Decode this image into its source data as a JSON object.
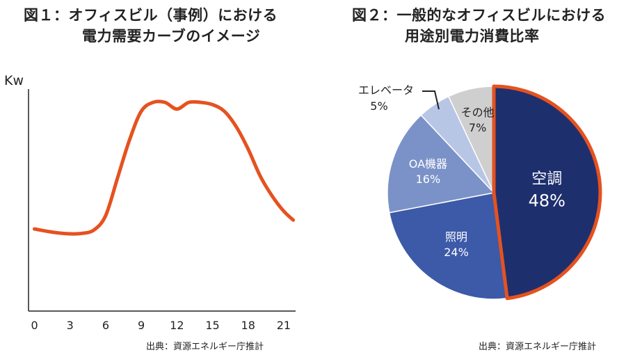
{
  "chart_data": [
    {
      "type": "line",
      "title": "図１：オフィスビル（事例）における",
      "subtitle": "電力需要カーブのイメージ",
      "xlabel": "",
      "ylabel": "Kw",
      "x_ticks": [
        "0",
        "3",
        "6",
        "9",
        "12",
        "15",
        "18",
        "21"
      ],
      "xlim": [
        -0.5,
        22
      ],
      "ylim": [
        0,
        100
      ],
      "grid": false,
      "color": "#e5521f",
      "series": [
        {
          "name": "電力需要",
          "x": [
            0,
            1,
            2,
            3,
            4,
            5,
            6,
            7,
            8,
            9,
            10,
            11,
            12,
            13,
            14,
            15,
            16,
            17,
            18,
            19,
            20,
            21,
            21.8
          ],
          "y": [
            37,
            36,
            35.2,
            34.8,
            35,
            36.5,
            43,
            60,
            77,
            90,
            94,
            94,
            91,
            94,
            94,
            93,
            90,
            83,
            73,
            61,
            52,
            45,
            41
          ]
        }
      ],
      "source": "出典：資源エネルギー庁推計"
    },
    {
      "type": "pie",
      "title": "図２：一般的なオフィスビルにおける",
      "subtitle": "用途別電力消費比率",
      "slices": [
        {
          "label": "空調",
          "value": 48,
          "display": "48%",
          "color": "#1e2f6e",
          "highlight": true
        },
        {
          "label": "照明",
          "value": 24,
          "display": "24%",
          "color": "#3c5aa8"
        },
        {
          "label": "OA機器",
          "value": 16,
          "display": "16%",
          "color": "#7b92c8"
        },
        {
          "label": "エレベータ",
          "value": 5,
          "display": "5%",
          "color": "#b8c6e6"
        },
        {
          "label": "その他",
          "value": 7,
          "display": "7%",
          "color": "#cfcfcf"
        }
      ],
      "highlight_color": "#e5521f",
      "source": "出典：資源エネルギー庁推計"
    }
  ]
}
